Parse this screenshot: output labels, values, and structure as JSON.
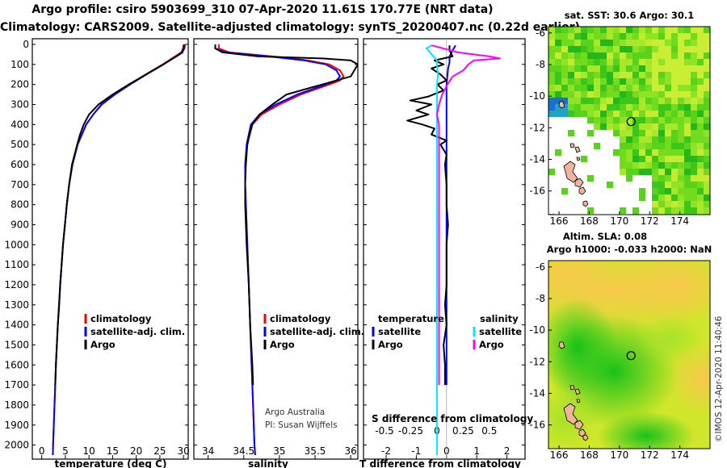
{
  "header": {
    "title_line1": "Argo profile: csiro 5903699_310 07-Apr-2020 11.61S 170.77E (NRT data)",
    "title_line2": "Climatology: CARS2009. Satellite-adjusted climatology: synTS_20200407.nc (0.22d earlier)"
  },
  "colors": {
    "climatology": "#ff0000",
    "satellite": "#0000ff",
    "argo": "#000000",
    "s_satellite": "#00e5ff",
    "s_argo": "#ff00ff"
  },
  "chart_data": [
    {
      "type": "line",
      "panel": "temperature",
      "xlabel": "temperature (deg C)",
      "ylabel": "depth",
      "xlim": [
        -2,
        31
      ],
      "ylim": [
        2050,
        0
      ],
      "xticks": [
        0,
        5,
        10,
        15,
        20,
        25,
        30
      ],
      "yticks": [
        0,
        100,
        200,
        300,
        400,
        500,
        600,
        700,
        800,
        900,
        1000,
        1100,
        1200,
        1300,
        1400,
        1500,
        1600,
        1700,
        1800,
        1900,
        2000
      ],
      "legend": [
        "climatology",
        "satellite-adj. clim.",
        "Argo"
      ],
      "series": [
        {
          "name": "climatology",
          "color": "#ff0000",
          "depth": [
            0,
            20,
            40,
            60,
            100,
            150,
            200,
            250,
            300,
            350,
            400,
            500,
            600,
            700,
            800,
            900,
            1000,
            1200,
            1400,
            1600,
            1800,
            2000,
            2050
          ],
          "values": [
            30.0,
            29.9,
            29.5,
            28.2,
            25.6,
            22.0,
            18.6,
            15.4,
            12.6,
            10.9,
            9.4,
            7.6,
            6.5,
            5.8,
            5.3,
            4.9,
            4.5,
            3.9,
            3.4,
            3.0,
            2.7,
            2.4,
            2.35
          ]
        },
        {
          "name": "satellite-adj. clim.",
          "color": "#0000ff",
          "depth": [
            0,
            20,
            40,
            60,
            100,
            150,
            200,
            250,
            300,
            350,
            400,
            500,
            600,
            700,
            800,
            900,
            1000,
            1200,
            1400,
            1600,
            1800,
            2000,
            2050
          ],
          "values": [
            30.3,
            30.2,
            29.7,
            28.4,
            25.8,
            22.2,
            18.7,
            15.5,
            12.7,
            10.9,
            9.4,
            7.6,
            6.5,
            5.8,
            5.3,
            4.9,
            4.5,
            3.9,
            3.4,
            3.0,
            2.7,
            2.4,
            2.35
          ]
        },
        {
          "name": "Argo",
          "color": "#000000",
          "depth": [
            5,
            20,
            40,
            60,
            100,
            150,
            200,
            250,
            300,
            350,
            400,
            450,
            500,
            600,
            700,
            800,
            900,
            1000,
            1100,
            1200,
            1300,
            1400,
            1500,
            1600,
            1700
          ],
          "values": [
            30.1,
            30.0,
            29.8,
            28.5,
            25.7,
            22.1,
            18.4,
            15.0,
            12.0,
            10.0,
            8.9,
            8.1,
            7.5,
            6.4,
            5.8,
            5.3,
            4.9,
            4.5,
            4.2,
            3.9,
            3.7,
            3.4,
            3.2,
            3.0,
            2.85
          ]
        }
      ]
    },
    {
      "type": "line",
      "panel": "salinity",
      "xlabel": "salinity",
      "xlim": [
        33.8,
        36.1
      ],
      "ylim": [
        2050,
        0
      ],
      "xticks": [
        34,
        34.5,
        35,
        35.5,
        36
      ],
      "legend": [
        "climatology",
        "satellite-adj. clim.",
        "Argo"
      ],
      "annotation": [
        "Argo Australia",
        "PI: Susan Wijffels"
      ],
      "series": [
        {
          "name": "climatology",
          "color": "#ff0000",
          "depth": [
            0,
            20,
            40,
            60,
            80,
            100,
            130,
            160,
            180,
            200,
            250,
            300,
            350,
            400,
            500,
            600,
            700,
            800,
            1000,
            1200,
            1400,
            1600,
            1800,
            2000,
            2050
          ],
          "values": [
            34.15,
            34.15,
            34.3,
            34.9,
            35.4,
            35.7,
            35.85,
            35.9,
            35.85,
            35.7,
            35.3,
            35.0,
            34.75,
            34.62,
            34.55,
            34.52,
            34.52,
            34.53,
            34.55,
            34.57,
            34.59,
            34.61,
            34.63,
            34.65,
            34.66
          ]
        },
        {
          "name": "satellite-adj. clim.",
          "color": "#0000ff",
          "depth": [
            0,
            20,
            40,
            60,
            80,
            100,
            130,
            160,
            180,
            200,
            250,
            300,
            350,
            400,
            500,
            600,
            700,
            800,
            1000,
            1200,
            1400,
            1600,
            1800,
            2000,
            2050
          ],
          "values": [
            34.1,
            34.1,
            34.25,
            34.85,
            35.35,
            35.65,
            35.8,
            35.85,
            35.8,
            35.65,
            35.25,
            34.95,
            34.72,
            34.6,
            34.54,
            34.52,
            34.52,
            34.53,
            34.55,
            34.57,
            34.59,
            34.61,
            34.63,
            34.65,
            34.66
          ]
        },
        {
          "name": "Argo",
          "color": "#000000",
          "depth": [
            5,
            20,
            40,
            60,
            70,
            80,
            100,
            130,
            160,
            200,
            250,
            300,
            350,
            400,
            450,
            500,
            600,
            700,
            800,
            900,
            1000,
            1200,
            1400,
            1600,
            1700
          ],
          "values": [
            34.1,
            34.1,
            34.2,
            34.7,
            35.6,
            36.0,
            36.1,
            36.05,
            36.0,
            35.6,
            35.1,
            34.9,
            34.72,
            34.62,
            34.58,
            34.55,
            34.53,
            34.52,
            34.52,
            34.53,
            34.54,
            34.57,
            34.59,
            34.62,
            34.63
          ]
        }
      ]
    },
    {
      "type": "line",
      "panel": "difference",
      "xlabel": "T difference from climatology",
      "xlabel2": "S difference from climatology",
      "xlim": [
        -2.75,
        2.6
      ],
      "xticks": [
        -2,
        -1,
        0,
        1,
        2
      ],
      "xlim2": [
        -0.7,
        0.84
      ],
      "xticks2": [
        -0.5,
        -0.25,
        0,
        0.25,
        0.5
      ],
      "ylim": [
        2050,
        0
      ],
      "legend_titles": [
        "temperature",
        "salinity"
      ],
      "legend": [
        "satellite",
        "Argo",
        "satellite",
        "Argo"
      ],
      "series": [
        {
          "name": "T satellite",
          "color": "#0000ff",
          "axis": "T",
          "depth": [
            5,
            30,
            60,
            90,
            120,
            200,
            300,
            400,
            600,
            800,
            1000,
            1200,
            1400,
            1600,
            1700
          ],
          "values": [
            0.3,
            0.2,
            0.1,
            0.1,
            0.05,
            0.0,
            0.0,
            0.0,
            0.0,
            0.0,
            0.0,
            0.0,
            0.0,
            0.0,
            0.0
          ]
        },
        {
          "name": "T Argo",
          "color": "#000000",
          "axis": "T",
          "depth": [
            5,
            30,
            60,
            80,
            100,
            120,
            150,
            180,
            200,
            230,
            260,
            280,
            300,
            330,
            350,
            380,
            400,
            420,
            450,
            480,
            500,
            550,
            600,
            700,
            800,
            900,
            1000,
            1100,
            1200,
            1300,
            1400,
            1500,
            1600,
            1700
          ],
          "values": [
            0.1,
            0.1,
            0.2,
            -0.4,
            -0.1,
            -0.5,
            -0.2,
            0.0,
            -0.3,
            -0.1,
            -0.6,
            -1.2,
            -0.5,
            -1.0,
            -0.6,
            -1.3,
            -0.8,
            -0.4,
            -0.5,
            0.0,
            -0.2,
            0.0,
            -0.05,
            0.0,
            0.0,
            0.05,
            0.0,
            0.0,
            0.0,
            -0.05,
            0.0,
            -0.1,
            -0.05,
            -0.05
          ]
        },
        {
          "name": "S satellite",
          "color": "#00e5ff",
          "axis": "S",
          "depth": [
            5,
            20,
            50,
            80,
            100,
            150,
            200,
            300,
            500,
            700,
            1000,
            1500,
            2000,
            2050
          ],
          "values": [
            -0.05,
            -0.1,
            -0.05,
            0.0,
            0.0,
            0.01,
            0.0,
            0.0,
            0.0,
            0.0,
            0.0,
            0.0,
            0.0,
            0.0
          ]
        },
        {
          "name": "S Argo",
          "color": "#ff00ff",
          "axis": "S",
          "depth": [
            5,
            40,
            60,
            70,
            80,
            100,
            130,
            160,
            200,
            250,
            300,
            350,
            400,
            500,
            600,
            800,
            1000,
            1200,
            1400,
            1600,
            1700
          ],
          "values": [
            -0.05,
            0.2,
            0.5,
            0.6,
            0.35,
            0.3,
            0.25,
            0.15,
            0.1,
            0.05,
            0.02,
            0.0,
            0.02,
            0.02,
            0.02,
            0.02,
            0.02,
            0.02,
            0.02,
            0.02,
            0.02
          ]
        }
      ]
    },
    {
      "type": "heatmap",
      "panel": "sst-map",
      "title": "sat. SST: 30.6 Argo: 30.1",
      "xticks": [
        166,
        168,
        170,
        172,
        174
      ],
      "yticks": [
        -6,
        -8,
        -10,
        -12,
        -14,
        -16
      ],
      "xlim": [
        165.3,
        176
      ],
      "ylim": [
        -17.5,
        -5.6
      ],
      "marker": {
        "lon": 170.77,
        "lat": -11.61
      }
    },
    {
      "type": "heatmap",
      "panel": "sla-map",
      "title_line1": "Altim. SLA: 0.08",
      "title_line2": "Argo h1000: -0.033 h2000: NaN",
      "xticks": [
        166,
        168,
        170,
        172,
        174
      ],
      "yticks": [
        -6,
        -8,
        -10,
        -12,
        -14,
        -16
      ],
      "xlim": [
        165.3,
        176
      ],
      "ylim": [
        -17.5,
        -5.6
      ],
      "marker": {
        "lon": 170.77,
        "lat": -11.61
      }
    }
  ],
  "credit": "©IMOS 12-Apr-2020 11:40:46"
}
